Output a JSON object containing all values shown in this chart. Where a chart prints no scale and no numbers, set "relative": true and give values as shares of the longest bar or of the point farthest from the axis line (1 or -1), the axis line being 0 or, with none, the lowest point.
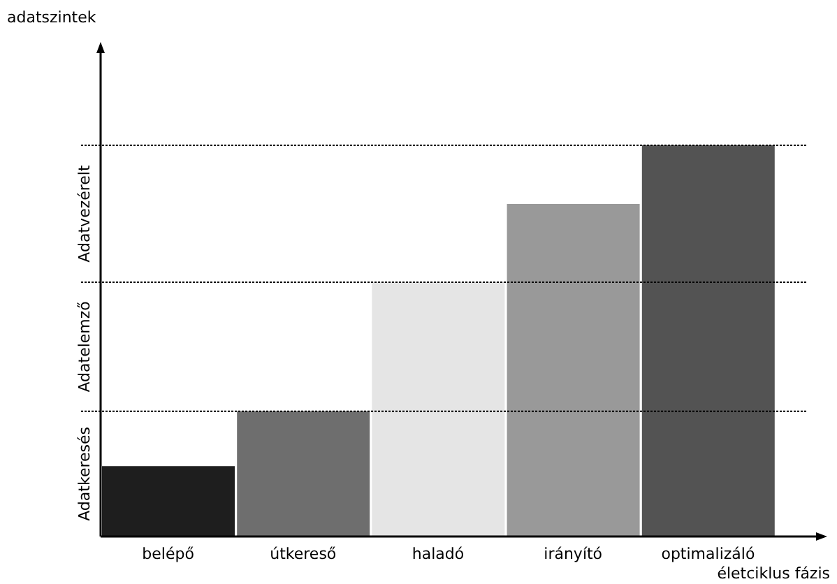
{
  "chart_data": {
    "type": "bar",
    "relative": true,
    "xlabel": "életciklus fázis",
    "categories": [
      "belépő",
      "útkereső",
      "haladó",
      "irányító",
      "optimalizáló"
    ],
    "values": [
      0.18,
      0.32,
      0.65,
      0.85,
      1
    ],
    "colors": [
      "#1e1e1e",
      "#6e6e6e",
      "#e5e5e5",
      "#999999",
      "#535353"
    ],
    "ref_lines": [
      {
        "axis": "y",
        "value": 0.32,
        "line_style": "dotted",
        "color": "#000000"
      },
      {
        "axis": "y",
        "value": 0.65,
        "line_style": "dotted",
        "color": "#000000"
      },
      {
        "axis": "y",
        "value": 1,
        "line_style": "dotted",
        "color": "#000000"
      }
    ],
    "annotations": [
      "Adatkeresés",
      "Adatelemző",
      "Adatvezérelt",
      "adatszintek"
    ]
  }
}
